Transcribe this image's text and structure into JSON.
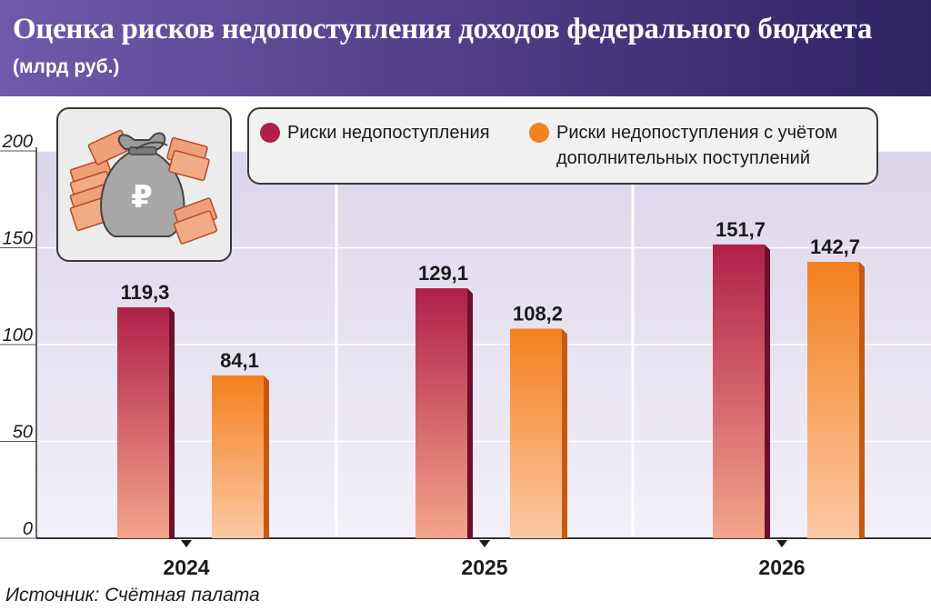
{
  "header": {
    "title": "Оценка рисков недопоступления доходов федерального бюджета",
    "subtitle": "(млрд руб.)"
  },
  "source": "Источник: Счётная палата",
  "colors": {
    "series1_top": "#b0204a",
    "series1_bottom": "#f4a58a",
    "series2_top": "#f4801e",
    "series2_bottom": "#fbc8a4",
    "header_bg": "#54408a"
  },
  "icon": {
    "name": "money-bag-icon",
    "symbol": "₽"
  },
  "chart_data": {
    "type": "bar",
    "categories": [
      "2024",
      "2025",
      "2026"
    ],
    "series": [
      {
        "name": "Риски недопоступления",
        "values": [
          119.3,
          129.1,
          151.7
        ],
        "labels": [
          "119,3",
          "129,1",
          "151,7"
        ]
      },
      {
        "name": "Риски недопоступления с учётом дополнительных поступлений",
        "values": [
          84.1,
          108.2,
          142.7
        ],
        "labels": [
          "84,1",
          "108,2",
          "142,7"
        ]
      }
    ],
    "yticks": [
      "0",
      "50",
      "100",
      "150",
      "200"
    ],
    "ylim": [
      0,
      200
    ],
    "title": "Оценка рисков недопоступления доходов федерального бюджета",
    "ylabel": "млрд руб.",
    "legend_position": "top-right",
    "grid": true
  }
}
